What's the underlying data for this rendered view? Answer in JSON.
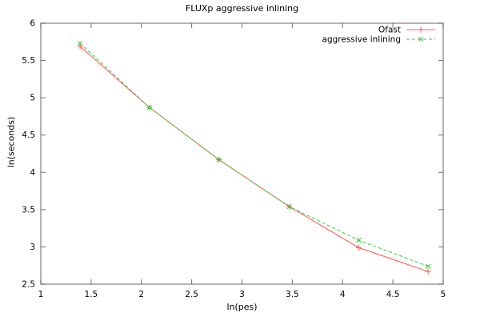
{
  "page": {
    "title": "FLUXp aggressive inlining"
  },
  "colors": {
    "background": "#ffffff",
    "border": "#9b9b9b",
    "tick": "#6f6f6f",
    "text": "#000000",
    "ofast_red": "#ff5555",
    "inlining_green": "#33cc33"
  },
  "chart_data": {
    "type": "line",
    "title": "FLUXp aggressive inlining",
    "xlabel": "ln(pes)",
    "ylabel": "ln(seconds)",
    "xlim": [
      1,
      5
    ],
    "ylim": [
      2.5,
      6
    ],
    "xticks": [
      1,
      1.5,
      2,
      2.5,
      3,
      3.5,
      4,
      4.5,
      5
    ],
    "yticks": [
      2.5,
      3,
      3.5,
      4,
      4.5,
      5,
      5.5,
      6
    ],
    "grid": false,
    "legend_position": "top-right-inside",
    "x": [
      1.39,
      2.08,
      2.77,
      3.47,
      4.16,
      4.85
    ],
    "series": [
      {
        "name": "Ofast",
        "color": "#ff5555",
        "style": "solid",
        "marker": "plus",
        "values": [
          5.69,
          4.87,
          4.17,
          3.54,
          2.99,
          2.67
        ]
      },
      {
        "name": "aggressive inlining",
        "color": "#33cc33",
        "style": "dashed",
        "marker": "cross",
        "values": [
          5.73,
          4.87,
          4.17,
          3.54,
          3.09,
          2.74
        ]
      }
    ]
  }
}
